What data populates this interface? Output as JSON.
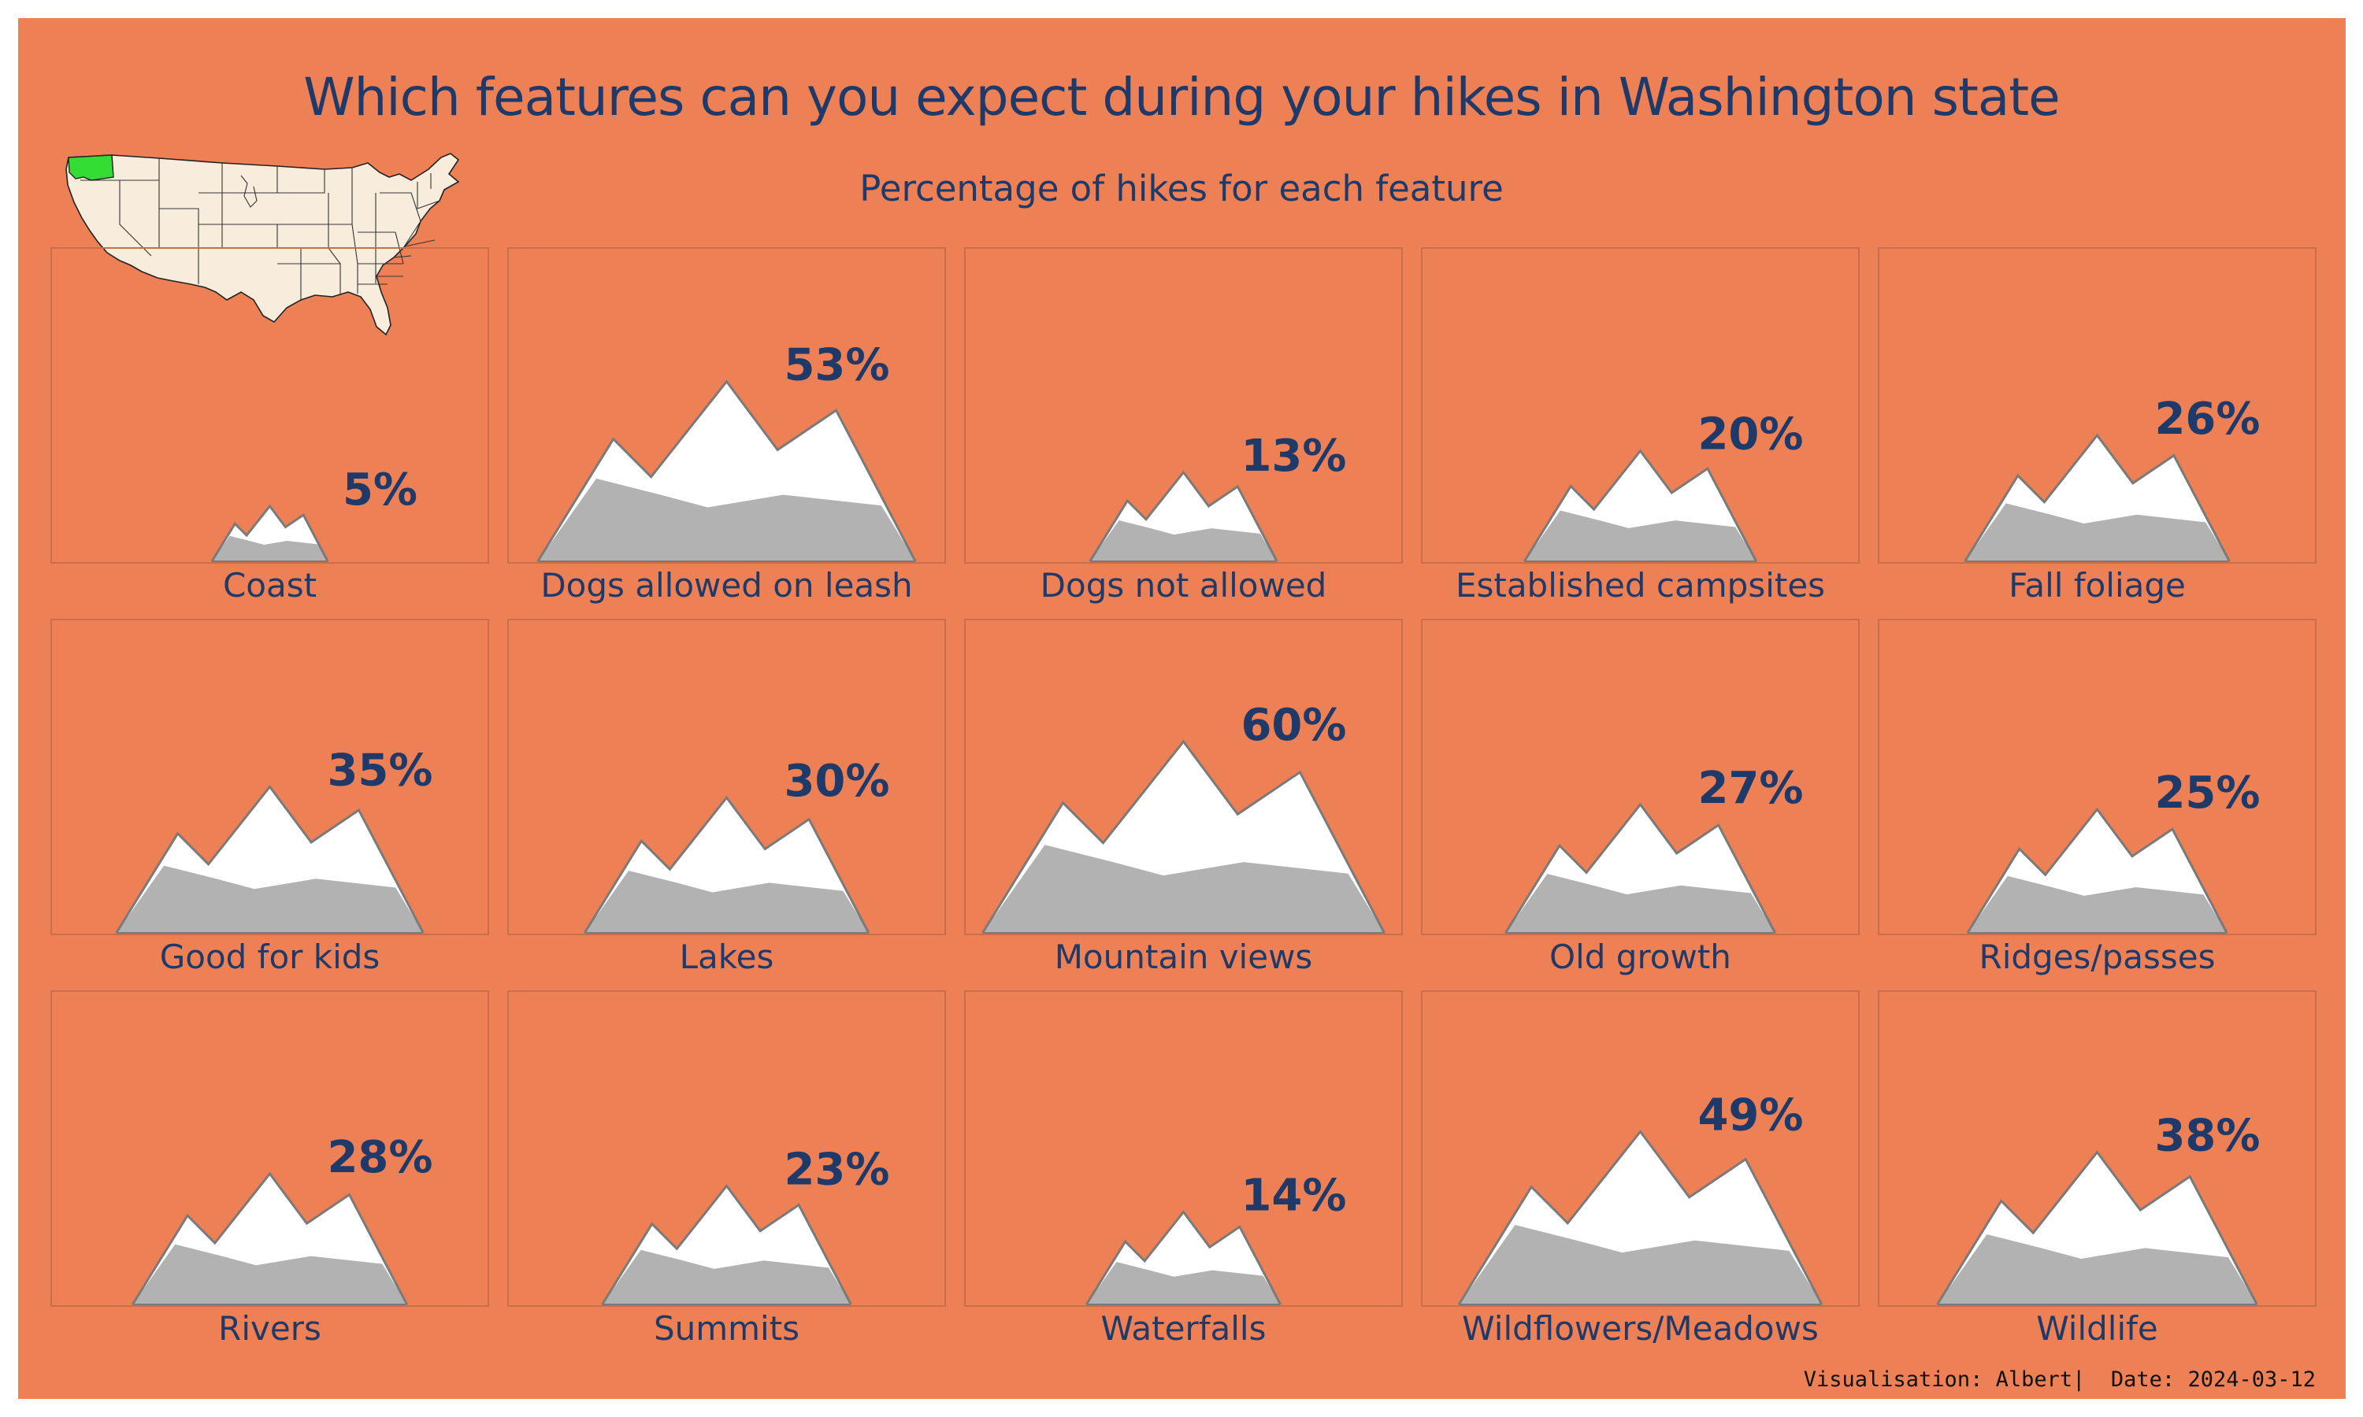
{
  "title": "Which features can you expect during your hikes in Washington state",
  "subtitle": "Percentage of hikes for each feature",
  "caption": {
    "author": "Visualisation: Albert",
    "separator": "|",
    "date": "Date: 2024-03-12"
  },
  "colors": {
    "background": "#ee8055",
    "text": "#1f3a68",
    "mountain_snow": "#ffffff",
    "mountain_rock": "#b2b2b2",
    "mountain_outline": "#7a7a7a",
    "map_land": "#f8ecdc",
    "highlight_state": "#33dd33"
  },
  "map": {
    "highlighted_state": "Washington",
    "icon": "us-states-map"
  },
  "chart_data": {
    "type": "bar",
    "mark": "mountain-glyph",
    "value_unit": "%",
    "grid": false,
    "categories": [
      "Coast",
      "Dogs allowed on leash",
      "Dogs not allowed",
      "Established campsites",
      "Fall foliage",
      "Good for kids",
      "Lakes",
      "Mountain views",
      "Old growth",
      "Ridges/passes",
      "Rivers",
      "Summits",
      "Waterfalls",
      "Wildflowers/Meadows",
      "Wildlife"
    ],
    "values": [
      5,
      53,
      13,
      20,
      26,
      35,
      30,
      60,
      27,
      25,
      28,
      23,
      14,
      49,
      38
    ],
    "labels": [
      "5%",
      "53%",
      "13%",
      "20%",
      "26%",
      "35%",
      "30%",
      "60%",
      "27%",
      "25%",
      "28%",
      "23%",
      "14%",
      "49%",
      "38%"
    ],
    "ylim": [
      0,
      60
    ]
  }
}
